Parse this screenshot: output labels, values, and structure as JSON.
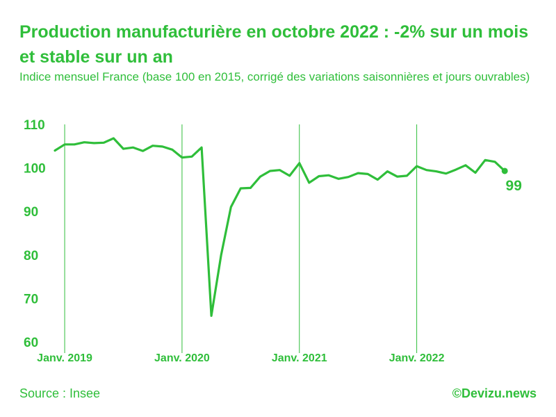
{
  "header": {
    "title": "Production manufacturière en octobre 2022 : -2% sur un mois et stable sur un an",
    "subtitle": "Indice mensuel France (base 100 en 2015, corrigé des variations saisonnières et jours ouvrables)"
  },
  "footer": {
    "source": "Source : Insee",
    "credit": "©Devizu.news"
  },
  "colors": {
    "accent": "#2fbe3a",
    "grid": "#2fbe3a"
  },
  "chart_data": {
    "type": "line",
    "title": "Production manufacturière en octobre 2022 : -2% sur un mois et stable sur un an",
    "subtitle": "Indice mensuel France (base 100 en 2015, corrigé des variations saisonnières et jours ouvrables)",
    "xlabel": "",
    "ylabel": "",
    "ylim": [
      60,
      110
    ],
    "y_ticks": [
      60,
      70,
      80,
      90,
      100,
      110
    ],
    "x_ticks": [
      {
        "label": "Janv. 2019",
        "month_index": 1
      },
      {
        "label": "Janv. 2020",
        "month_index": 13
      },
      {
        "label": "Janv. 2021",
        "month_index": 25
      },
      {
        "label": "Janv. 2022",
        "month_index": 37
      }
    ],
    "grid": "vertical-at-january",
    "end_label": "99",
    "series": [
      {
        "values": [
          104.0,
          105.4,
          105.4,
          105.9,
          105.7,
          105.8,
          106.8,
          104.4,
          104.7,
          103.9,
          105.1,
          104.9,
          104.2,
          102.4,
          102.6,
          104.7,
          66.0,
          80.0,
          91.0,
          95.3,
          95.4,
          98.0,
          99.3,
          99.5,
          98.2,
          101.1,
          96.6,
          98.1,
          98.3,
          97.5,
          97.9,
          98.8,
          98.6,
          97.3,
          99.2,
          98.0,
          98.2,
          100.4,
          99.5,
          99.2,
          98.7,
          99.6,
          100.6,
          98.9,
          101.8,
          101.4,
          99.3
        ]
      }
    ]
  }
}
